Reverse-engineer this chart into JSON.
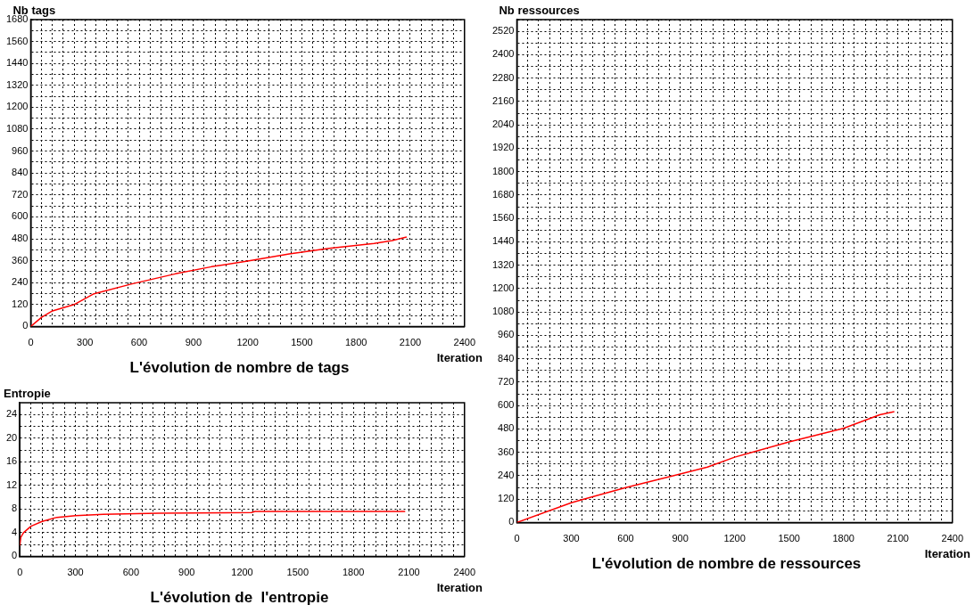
{
  "chart_data": [
    {
      "type": "line",
      "title": "L'évolution de nombre de tags",
      "xlabel": "Iteration",
      "ylabel": "Nb tags",
      "grid": true,
      "marker": "none",
      "line_style": "solid",
      "xlim": [
        0,
        2400
      ],
      "ylim": [
        0,
        1680
      ],
      "xticks": [
        0,
        {
          "value": 60,
          "label": null
        },
        {
          "value": 120,
          "label": null
        },
        {
          "value": 180,
          "label": null
        },
        {
          "value": 240,
          "label": null
        },
        300,
        {
          "value": 360,
          "label": null
        },
        {
          "value": 420,
          "label": null
        },
        {
          "value": 480,
          "label": null
        },
        {
          "value": 540,
          "label": null
        },
        600,
        {
          "value": 660,
          "label": null
        },
        {
          "value": 720,
          "label": null
        },
        {
          "value": 780,
          "label": null
        },
        {
          "value": 840,
          "label": null
        },
        900,
        {
          "value": 960,
          "label": null
        },
        {
          "value": 1020,
          "label": null
        },
        {
          "value": 1080,
          "label": null
        },
        {
          "value": 1140,
          "label": null
        },
        1200,
        {
          "value": 1260,
          "label": null
        },
        {
          "value": 1320,
          "label": null
        },
        {
          "value": 1380,
          "label": null
        },
        {
          "value": 1440,
          "label": null
        },
        1500,
        {
          "value": 1560,
          "label": null
        },
        {
          "value": 1620,
          "label": null
        },
        {
          "value": 1680,
          "label": null
        },
        {
          "value": 1740,
          "label": null
        },
        1800,
        {
          "value": 1860,
          "label": null
        },
        {
          "value": 1920,
          "label": null
        },
        {
          "value": 1980,
          "label": null
        },
        {
          "value": 2040,
          "label": null
        },
        2100,
        {
          "value": 2160,
          "label": null
        },
        {
          "value": 2220,
          "label": null
        },
        {
          "value": 2280,
          "label": null
        },
        {
          "value": 2340,
          "label": null
        },
        2400
      ],
      "yticks": [
        0,
        {
          "value": 60,
          "label": null
        },
        120,
        {
          "value": 180,
          "label": null
        },
        240,
        {
          "value": 300,
          "label": null
        },
        360,
        {
          "value": 420,
          "label": null
        },
        480,
        {
          "value": 540,
          "label": null
        },
        600,
        {
          "value": 660,
          "label": null
        },
        720,
        {
          "value": 780,
          "label": null
        },
        840,
        {
          "value": 900,
          "label": null
        },
        960,
        {
          "value": 1020,
          "label": null
        },
        1080,
        {
          "value": 1140,
          "label": null
        },
        1200,
        {
          "value": 1260,
          "label": null
        },
        1320,
        {
          "value": 1380,
          "label": null
        },
        1440,
        {
          "value": 1500,
          "label": null
        },
        1560,
        {
          "value": 1620,
          "label": null
        },
        1680
      ],
      "x": [
        0,
        60,
        120,
        240,
        350,
        560,
        800,
        1000,
        1200,
        1430,
        1650,
        1900,
        2000,
        2080
      ],
      "series": [
        {
          "color": "#ff0000",
          "values": [
            0,
            50,
            85,
            120,
            179,
            233,
            288,
            327,
            358,
            397,
            428,
            454,
            470,
            490
          ]
        }
      ]
    },
    {
      "type": "line",
      "title": "L'évolution de  l'entropie",
      "xlabel": "Iteration",
      "ylabel": "Entropie",
      "grid": true,
      "marker": "none",
      "line_style": "solid",
      "xlim": [
        0,
        2400
      ],
      "ylim": [
        0,
        26
      ],
      "xticks": [
        0,
        {
          "value": 60,
          "label": null
        },
        {
          "value": 120,
          "label": null
        },
        {
          "value": 180,
          "label": null
        },
        {
          "value": 240,
          "label": null
        },
        300,
        {
          "value": 360,
          "label": null
        },
        {
          "value": 420,
          "label": null
        },
        {
          "value": 480,
          "label": null
        },
        {
          "value": 540,
          "label": null
        },
        600,
        {
          "value": 660,
          "label": null
        },
        {
          "value": 720,
          "label": null
        },
        {
          "value": 780,
          "label": null
        },
        {
          "value": 840,
          "label": null
        },
        900,
        {
          "value": 960,
          "label": null
        },
        {
          "value": 1020,
          "label": null
        },
        {
          "value": 1080,
          "label": null
        },
        {
          "value": 1140,
          "label": null
        },
        1200,
        {
          "value": 1260,
          "label": null
        },
        {
          "value": 1320,
          "label": null
        },
        {
          "value": 1380,
          "label": null
        },
        {
          "value": 1440,
          "label": null
        },
        1500,
        {
          "value": 1560,
          "label": null
        },
        {
          "value": 1620,
          "label": null
        },
        {
          "value": 1680,
          "label": null
        },
        {
          "value": 1740,
          "label": null
        },
        1800,
        {
          "value": 1860,
          "label": null
        },
        {
          "value": 1920,
          "label": null
        },
        {
          "value": 1980,
          "label": null
        },
        {
          "value": 2040,
          "label": null
        },
        2100,
        {
          "value": 2160,
          "label": null
        },
        {
          "value": 2220,
          "label": null
        },
        {
          "value": 2280,
          "label": null
        },
        {
          "value": 2340,
          "label": null
        },
        2400
      ],
      "yticks": [
        0,
        {
          "value": 2,
          "label": null
        },
        4,
        {
          "value": 6,
          "label": null
        },
        8,
        {
          "value": 10,
          "label": null
        },
        12,
        {
          "value": 14,
          "label": null
        },
        16,
        {
          "value": 18,
          "label": null
        },
        20,
        {
          "value": 22,
          "label": null
        },
        24
      ],
      "x": [
        0,
        5,
        20,
        60,
        120,
        200,
        300,
        450,
        750,
        1250,
        1270,
        2080
      ],
      "series": [
        {
          "color": "#ff0000",
          "values": [
            1.8,
            3.2,
            4.0,
            5.1,
            5.9,
            6.6,
            6.9,
            7.1,
            7.3,
            7.4,
            7.6,
            7.6
          ]
        }
      ]
    },
    {
      "type": "line",
      "title": "L'évolution de nombre de ressources",
      "xlabel": "Iteration",
      "ylabel": "Nb ressources",
      "grid": true,
      "marker": "none",
      "line_style": "solid",
      "xlim": [
        0,
        2400
      ],
      "ylim": [
        0,
        2580
      ],
      "xticks": [
        0,
        {
          "value": 60,
          "label": null
        },
        {
          "value": 120,
          "label": null
        },
        {
          "value": 180,
          "label": null
        },
        {
          "value": 240,
          "label": null
        },
        300,
        {
          "value": 360,
          "label": null
        },
        {
          "value": 420,
          "label": null
        },
        {
          "value": 480,
          "label": null
        },
        {
          "value": 540,
          "label": null
        },
        600,
        {
          "value": 660,
          "label": null
        },
        {
          "value": 720,
          "label": null
        },
        {
          "value": 780,
          "label": null
        },
        {
          "value": 840,
          "label": null
        },
        900,
        {
          "value": 960,
          "label": null
        },
        {
          "value": 1020,
          "label": null
        },
        {
          "value": 1080,
          "label": null
        },
        {
          "value": 1140,
          "label": null
        },
        1200,
        {
          "value": 1260,
          "label": null
        },
        {
          "value": 1320,
          "label": null
        },
        {
          "value": 1380,
          "label": null
        },
        {
          "value": 1440,
          "label": null
        },
        1500,
        {
          "value": 1560,
          "label": null
        },
        {
          "value": 1620,
          "label": null
        },
        {
          "value": 1680,
          "label": null
        },
        {
          "value": 1740,
          "label": null
        },
        1800,
        {
          "value": 1860,
          "label": null
        },
        {
          "value": 1920,
          "label": null
        },
        {
          "value": 1980,
          "label": null
        },
        {
          "value": 2040,
          "label": null
        },
        2100,
        {
          "value": 2160,
          "label": null
        },
        {
          "value": 2220,
          "label": null
        },
        {
          "value": 2280,
          "label": null
        },
        {
          "value": 2340,
          "label": null
        },
        2400
      ],
      "yticks": [
        0,
        {
          "value": 60,
          "label": null
        },
        120,
        {
          "value": 180,
          "label": null
        },
        240,
        {
          "value": 300,
          "label": null
        },
        360,
        {
          "value": 420,
          "label": null
        },
        480,
        {
          "value": 540,
          "label": null
        },
        600,
        {
          "value": 660,
          "label": null
        },
        720,
        {
          "value": 780,
          "label": null
        },
        840,
        {
          "value": 900,
          "label": null
        },
        960,
        {
          "value": 1020,
          "label": null
        },
        1080,
        {
          "value": 1140,
          "label": null
        },
        1200,
        {
          "value": 1260,
          "label": null
        },
        1320,
        {
          "value": 1380,
          "label": null
        },
        1440,
        {
          "value": 1500,
          "label": null
        },
        1560,
        {
          "value": 1620,
          "label": null
        },
        1680,
        {
          "value": 1740,
          "label": null
        },
        1800,
        {
          "value": 1860,
          "label": null
        },
        1920,
        {
          "value": 1980,
          "label": null
        },
        2040,
        {
          "value": 2100,
          "label": null
        },
        2160,
        {
          "value": 2220,
          "label": null
        },
        2280,
        {
          "value": 2340,
          "label": null
        },
        2400,
        {
          "value": 2460,
          "label": null
        },
        2520,
        {
          "value": 2580,
          "label": null
        }
      ],
      "x": [
        0,
        300,
        360,
        600,
        900,
        1050,
        1200,
        1500,
        1800,
        2000,
        2080
      ],
      "series": [
        {
          "color": "#ff0000",
          "values": [
            0,
            101,
            117,
            179,
            249,
            284,
            335,
            413,
            483,
            553,
            569
          ]
        }
      ]
    }
  ]
}
